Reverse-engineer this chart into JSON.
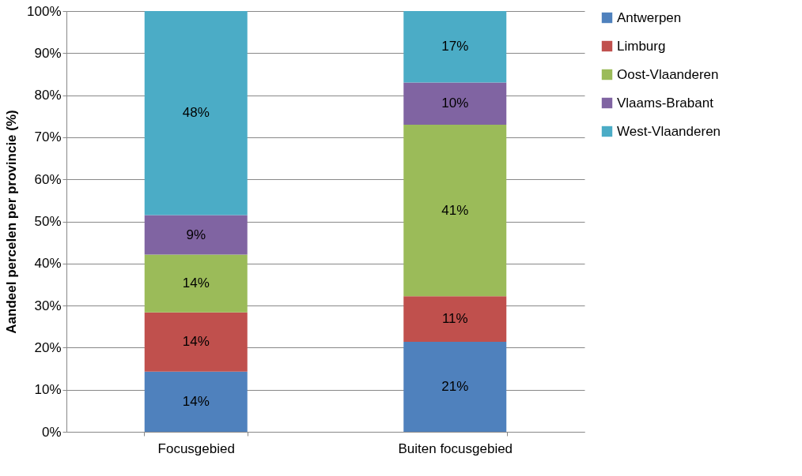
{
  "chart_data": {
    "type": "bar",
    "stacked": true,
    "ylabel": "Aandeel percelen per provincie (%)",
    "categories": [
      "Focusgebied",
      "Buiten focusgebied"
    ],
    "series": [
      {
        "name": "Antwerpen",
        "color": "#4f81bd",
        "values": [
          14.3,
          21.4
        ],
        "value_labels": [
          "14%",
          "21%"
        ]
      },
      {
        "name": "Limburg",
        "color": "#c0504d",
        "values": [
          14.1,
          10.8
        ],
        "value_labels": [
          "14%",
          "11%"
        ]
      },
      {
        "name": "Oost-Vlaanderen",
        "color": "#9bbb59",
        "values": [
          13.7,
          40.8
        ],
        "value_labels": [
          "14%",
          "41%"
        ]
      },
      {
        "name": "Vlaams-Brabant",
        "color": "#8064a2",
        "values": [
          9.4,
          10.0
        ],
        "value_labels": [
          "9%",
          "10%"
        ]
      },
      {
        "name": "West-Vlaanderen",
        "color": "#4bacc6",
        "values": [
          48.5,
          17.0
        ],
        "value_labels": [
          "48%",
          "17%"
        ]
      }
    ],
    "ylim": [
      0,
      100
    ],
    "yticks": [
      {
        "value": 0,
        "label": "0%"
      },
      {
        "value": 10,
        "label": "10%"
      },
      {
        "value": 20,
        "label": "20%"
      },
      {
        "value": 30,
        "label": "30%"
      },
      {
        "value": 40,
        "label": "40%"
      },
      {
        "value": 50,
        "label": "50%"
      },
      {
        "value": 60,
        "label": "60%"
      },
      {
        "value": 70,
        "label": "70%"
      },
      {
        "value": 80,
        "label": "80%"
      },
      {
        "value": 90,
        "label": "90%"
      },
      {
        "value": 100,
        "label": "100%"
      }
    ],
    "grid": "y",
    "legend": "right"
  }
}
